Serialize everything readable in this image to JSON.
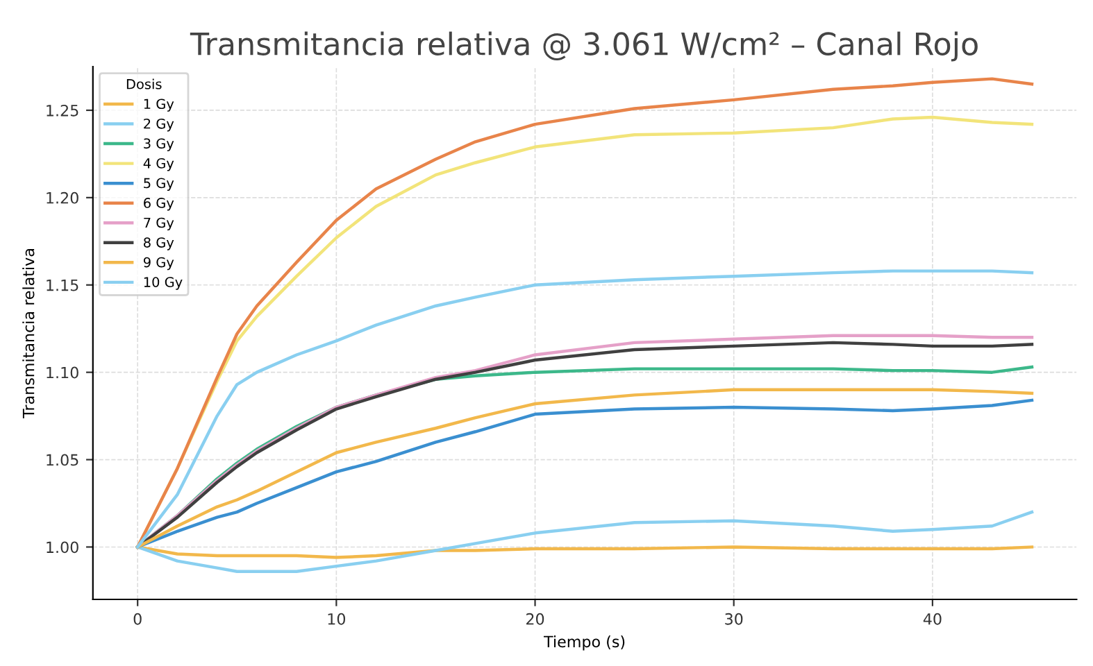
{
  "chart_data": {
    "type": "line",
    "title": "Transmitancia relativa @ 3.061 W/cm² – Canal Rojo",
    "xlabel": "Tiempo (s)",
    "ylabel": "Transmitancia relativa",
    "legend_title": "Dosis",
    "legend": "top left",
    "grid": true,
    "x": [
      0,
      2,
      4,
      5,
      6,
      8,
      10,
      12,
      15,
      17,
      20,
      25,
      30,
      35,
      38,
      40,
      43,
      45
    ],
    "xlim": [
      -2.25,
      47.25
    ],
    "xticks": [
      0,
      10,
      20,
      30,
      40
    ],
    "ylim": [
      0.97,
      1.275
    ],
    "yticks": [
      {
        "value": 1.0,
        "label": "1.00"
      },
      {
        "value": 1.05,
        "label": "1.05"
      },
      {
        "value": 1.1,
        "label": "1.10"
      },
      {
        "value": 1.15,
        "label": "1.15"
      },
      {
        "value": 1.2,
        "label": "1.20"
      },
      {
        "value": 1.25,
        "label": "1.25"
      }
    ],
    "series": [
      {
        "name": "1 Gy",
        "color": "#f2b84b",
        "values": [
          1.0,
          0.996,
          0.995,
          0.995,
          0.995,
          0.995,
          0.994,
          0.995,
          0.998,
          0.998,
          0.999,
          0.999,
          1.0,
          0.999,
          0.999,
          0.999,
          0.999,
          1.0
        ]
      },
      {
        "name": "2 Gy",
        "color": "#89cff0",
        "values": [
          1.0,
          0.992,
          0.988,
          0.986,
          0.986,
          0.986,
          0.989,
          0.992,
          0.998,
          1.002,
          1.008,
          1.014,
          1.015,
          1.012,
          1.009,
          1.01,
          1.012,
          1.02
        ]
      },
      {
        "name": "3 Gy",
        "color": "#3cb88a",
        "values": [
          1.0,
          1.018,
          1.039,
          1.048,
          1.056,
          1.069,
          1.08,
          1.087,
          1.096,
          1.098,
          1.1,
          1.102,
          1.102,
          1.102,
          1.101,
          1.101,
          1.1,
          1.103
        ]
      },
      {
        "name": "4 Gy",
        "color": "#f2e47a",
        "values": [
          1.0,
          1.045,
          1.095,
          1.118,
          1.132,
          1.155,
          1.177,
          1.195,
          1.213,
          1.22,
          1.229,
          1.236,
          1.237,
          1.24,
          1.245,
          1.246,
          1.243,
          1.242
        ]
      },
      {
        "name": "5 Gy",
        "color": "#3a8fd0",
        "values": [
          1.0,
          1.009,
          1.017,
          1.02,
          1.025,
          1.034,
          1.043,
          1.049,
          1.06,
          1.066,
          1.076,
          1.079,
          1.08,
          1.079,
          1.078,
          1.079,
          1.081,
          1.084
        ]
      },
      {
        "name": "6 Gy",
        "color": "#e8844a",
        "values": [
          1.0,
          1.045,
          1.097,
          1.122,
          1.138,
          1.163,
          1.187,
          1.205,
          1.222,
          1.232,
          1.242,
          1.251,
          1.256,
          1.262,
          1.264,
          1.266,
          1.268,
          1.265
        ]
      },
      {
        "name": "7 Gy",
        "color": "#e5a0c8",
        "values": [
          1.0,
          1.018,
          1.038,
          1.047,
          1.055,
          1.068,
          1.08,
          1.087,
          1.097,
          1.101,
          1.11,
          1.117,
          1.119,
          1.121,
          1.121,
          1.121,
          1.12,
          1.12
        ]
      },
      {
        "name": "8 Gy",
        "color": "#404040",
        "values": [
          1.0,
          1.017,
          1.037,
          1.046,
          1.054,
          1.067,
          1.079,
          1.086,
          1.096,
          1.1,
          1.107,
          1.113,
          1.115,
          1.117,
          1.116,
          1.115,
          1.115,
          1.116
        ]
      },
      {
        "name": "9 Gy",
        "color": "#f2b84b",
        "values": [
          1.0,
          1.012,
          1.023,
          1.027,
          1.032,
          1.043,
          1.054,
          1.06,
          1.068,
          1.074,
          1.082,
          1.087,
          1.09,
          1.09,
          1.09,
          1.09,
          1.089,
          1.088
        ]
      },
      {
        "name": "10 Gy",
        "color": "#89cff0",
        "values": [
          1.0,
          1.03,
          1.075,
          1.093,
          1.1,
          1.11,
          1.118,
          1.127,
          1.138,
          1.143,
          1.15,
          1.153,
          1.155,
          1.157,
          1.158,
          1.158,
          1.158,
          1.157
        ]
      }
    ]
  }
}
